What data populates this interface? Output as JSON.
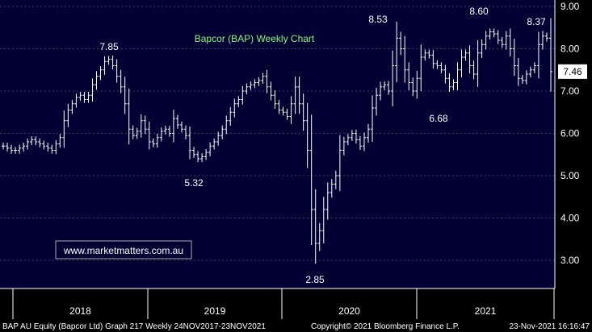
{
  "chart_data": {
    "type": "line",
    "title": "Bapcor (BAP) Weekly Chart",
    "ylim": [
      2.5,
      9.2
    ],
    "y_ticks": [
      {
        "value": 3.0,
        "label": "3.00"
      },
      {
        "value": 4.0,
        "label": "4.00"
      },
      {
        "value": 5.0,
        "label": "5.00"
      },
      {
        "value": 6.0,
        "label": "6.00"
      },
      {
        "value": 7.0,
        "label": "7.00"
      },
      {
        "value": 8.0,
        "label": "8.00"
      },
      {
        "value": 9.0,
        "label": "9.00"
      }
    ],
    "x_labels": [
      "2018",
      "2019",
      "2020",
      "2021"
    ],
    "last_price": {
      "label": "7.46",
      "value": 7.46
    },
    "annotations": [
      {
        "label": "7.85",
        "value": 7.85
      },
      {
        "label": "5.32",
        "value": 5.32
      },
      {
        "label": "2.85",
        "value": 2.85
      },
      {
        "label": "8.53",
        "value": 8.53
      },
      {
        "label": "6.68",
        "value": 6.68
      },
      {
        "label": "8.60",
        "value": 8.6
      },
      {
        "label": "8.37",
        "value": 8.37
      }
    ],
    "series": [
      {
        "values": [
          5.7,
          5.65,
          5.6,
          5.6,
          5.65,
          5.7,
          5.8,
          5.85,
          5.8,
          5.75,
          5.7,
          5.65,
          5.6,
          5.75,
          5.9,
          6.3,
          6.55,
          6.7,
          6.85,
          6.9,
          6.8,
          6.9,
          7.15,
          7.35,
          7.5,
          7.7,
          7.75,
          7.6,
          7.35,
          7.1,
          6.7,
          6.1,
          5.95,
          6.05,
          6.3,
          6.1,
          5.8,
          5.75,
          5.9,
          6.05,
          6.1,
          6.0,
          6.35,
          6.2,
          6.1,
          5.95,
          5.6,
          5.5,
          5.4,
          5.45,
          5.55,
          5.7,
          5.8,
          5.95,
          6.1,
          6.3,
          6.5,
          6.7,
          6.8,
          7.0,
          7.1,
          7.15,
          7.2,
          7.25,
          7.35,
          7.1,
          6.9,
          6.7,
          6.55,
          6.5,
          6.4,
          6.7,
          7.1,
          6.7,
          6.3,
          5.6,
          4.2,
          3.4,
          3.7,
          4.2,
          4.6,
          4.8,
          5.0,
          5.6,
          5.8,
          5.9,
          6.0,
          5.85,
          5.7,
          5.9,
          6.1,
          6.6,
          6.9,
          7.1,
          7.15,
          7.0,
          7.6,
          8.25,
          8.0,
          7.5,
          7.2,
          7.0,
          7.3,
          7.8,
          7.9,
          7.85,
          7.65,
          7.6,
          7.5,
          7.3,
          7.1,
          7.2,
          7.5,
          7.8,
          7.9,
          7.6,
          7.4,
          7.9,
          8.1,
          8.3,
          8.4,
          8.35,
          8.2,
          8.1,
          8.3,
          8.0,
          7.6,
          7.3,
          7.25,
          7.4,
          7.5,
          7.6,
          8.1,
          8.3,
          8.25,
          7.46
        ]
      }
    ],
    "footer": {
      "left": "BAP AU Equity (Bapcor Ltd) Graph 217  Weekly 24NOV2017-23NOV2021",
      "center": "Copyright© 2021 Bloomberg Finance L.P.",
      "right": "23-Nov-2021 16:16:47"
    },
    "watermark": "www.marketmatters.com.au",
    "colors": {
      "background": "#000000",
      "plot_background": "#000033",
      "grid": "#3a3a6a",
      "price": "#ffffff",
      "title": "#7cfc7c",
      "watermark_text": "#ffffff",
      "watermark_border": "#aaaaaa",
      "last_price_box": "#ffffff"
    }
  }
}
